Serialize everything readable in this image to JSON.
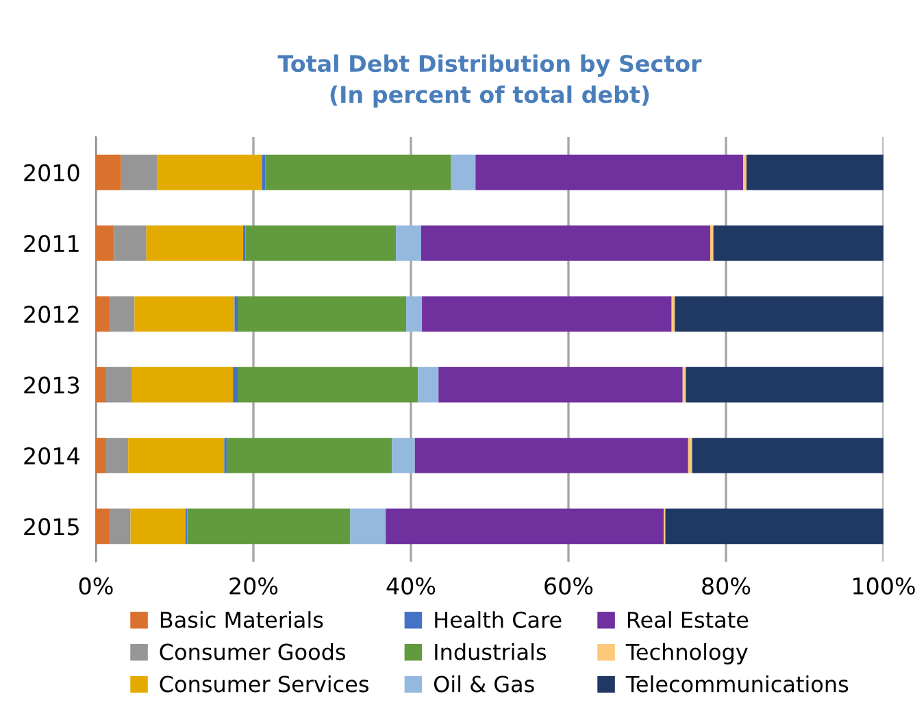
{
  "chart_data": {
    "type": "bar",
    "orientation": "horizontal",
    "stacked": true,
    "title": "Total Debt Distribution by Sector\n(In percent of total debt)",
    "categories": [
      "2010",
      "2011",
      "2012",
      "2013",
      "2014",
      "2015"
    ],
    "series": [
      {
        "name": "Basic Materials",
        "color": "#d9722e",
        "values": [
          3.2,
          2.3,
          1.8,
          1.3,
          1.3,
          1.8
        ]
      },
      {
        "name": "Consumer Goods",
        "color": "#969696",
        "values": [
          4.6,
          4.1,
          3.1,
          3.3,
          2.8,
          2.6
        ]
      },
      {
        "name": "Consumer Services",
        "color": "#e3ab00",
        "values": [
          13.3,
          12.3,
          12.7,
          12.8,
          12.2,
          7.0
        ]
      },
      {
        "name": "Health Care",
        "color": "#4472c4",
        "values": [
          0.4,
          0.3,
          0.4,
          0.6,
          0.3,
          0.2
        ]
      },
      {
        "name": "Industrials",
        "color": "#629a3e",
        "values": [
          23.6,
          19.1,
          21.4,
          22.9,
          21.0,
          20.7
        ]
      },
      {
        "name": "Oil & Gas",
        "color": "#95b8df",
        "values": [
          3.1,
          3.2,
          2.0,
          2.6,
          2.9,
          4.5
        ]
      },
      {
        "name": "Real Estate",
        "color": "#70309e",
        "values": [
          34.0,
          36.7,
          31.7,
          31.0,
          34.7,
          35.3
        ]
      },
      {
        "name": "Technology",
        "color": "#fcc97a",
        "values": [
          0.4,
          0.4,
          0.4,
          0.4,
          0.5,
          0.2
        ]
      },
      {
        "name": "Telecommunications",
        "color": "#203864",
        "values": [
          17.4,
          21.6,
          26.5,
          25.1,
          24.3,
          27.7
        ]
      }
    ],
    "xlim": [
      0,
      100
    ],
    "xticks": [
      {
        "value": 0,
        "label": "0%"
      },
      {
        "value": 20,
        "label": "20%"
      },
      {
        "value": 40,
        "label": "40%"
      },
      {
        "value": 60,
        "label": "60%"
      },
      {
        "value": 80,
        "label": "80%"
      },
      {
        "value": 100,
        "label": "100%"
      }
    ],
    "grid": "x",
    "legend": "bottom"
  }
}
